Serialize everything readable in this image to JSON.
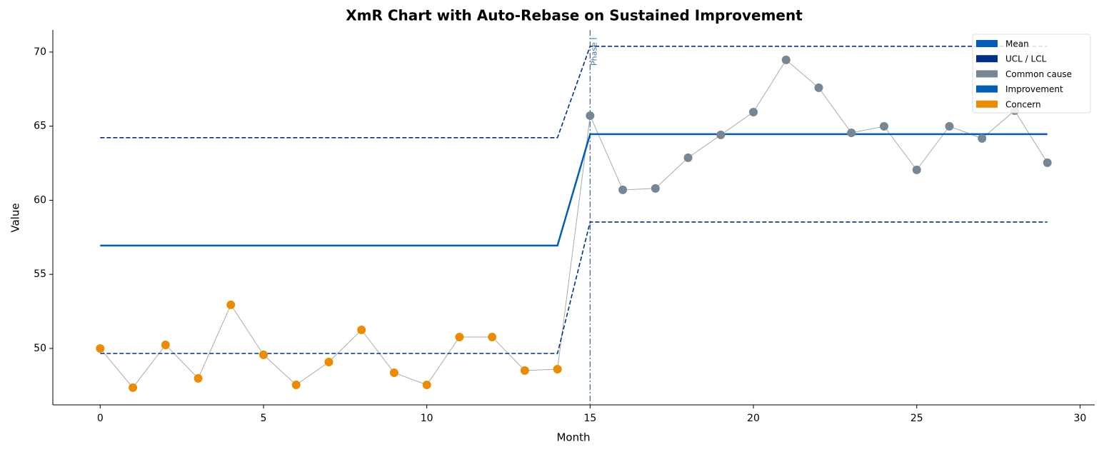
{
  "chart_data": {
    "type": "xmr",
    "title": "XmR Chart with Auto-Rebase on Sustained Improvement",
    "x_label": "Month",
    "y_label": "Value",
    "x": [
      0,
      1,
      2,
      3,
      4,
      5,
      6,
      7,
      8,
      9,
      10,
      11,
      12,
      13,
      14,
      15,
      16,
      17,
      18,
      19,
      20,
      21,
      22,
      23,
      24,
      25,
      26,
      27,
      28,
      29
    ],
    "values": [
      50.0,
      47.35,
      50.24,
      47.98,
      52.94,
      49.57,
      47.54,
      49.08,
      51.25,
      48.36,
      47.54,
      50.77,
      50.77,
      48.51,
      48.6,
      65.71,
      60.7,
      60.8,
      62.87,
      64.41,
      65.95,
      69.47,
      67.59,
      64.55,
      64.99,
      62.05,
      64.99,
      64.17,
      66.05,
      62.53
    ],
    "line_color": "#aaaaaa",
    "point_class": [
      "Concern",
      "Concern",
      "Concern",
      "Concern",
      "Concern",
      "Concern",
      "Concern",
      "Concern",
      "Concern",
      "Concern",
      "Concern",
      "Concern",
      "Concern",
      "Concern",
      "Concern",
      "Common cause",
      "Common cause",
      "Common cause",
      "Common cause",
      "Common cause",
      "Common cause",
      "Common cause",
      "Common cause",
      "Common cause",
      "Common cause",
      "Common cause",
      "Common cause",
      "Common cause",
      "Common cause",
      "Common cause"
    ],
    "mean": {
      "name": "Mean",
      "color": "#005eb8",
      "values": [
        56.94,
        56.94,
        56.94,
        56.94,
        56.94,
        56.94,
        56.94,
        56.94,
        56.94,
        56.94,
        56.94,
        56.94,
        56.94,
        56.94,
        56.94,
        64.46,
        64.46,
        64.46,
        64.46,
        64.46,
        64.46,
        64.46,
        64.46,
        64.46,
        64.46,
        64.46,
        64.46,
        64.46,
        64.46,
        64.46
      ]
    },
    "limits": {
      "name": "UCL / LCL",
      "color": "#003087",
      "ucl": [
        64.22,
        64.22,
        64.22,
        64.22,
        64.22,
        64.22,
        64.22,
        64.22,
        64.22,
        64.22,
        64.22,
        64.22,
        64.22,
        64.22,
        64.22,
        70.39,
        70.39,
        70.39,
        70.39,
        70.39,
        70.39,
        70.39,
        70.39,
        70.39,
        70.39,
        70.39,
        70.39,
        70.39,
        70.39,
        70.39
      ],
      "lcl": [
        49.66,
        49.66,
        49.66,
        49.66,
        49.66,
        49.66,
        49.66,
        49.66,
        49.66,
        49.66,
        49.66,
        49.66,
        49.66,
        49.66,
        49.66,
        58.53,
        58.53,
        58.53,
        58.53,
        58.53,
        58.53,
        58.53,
        58.53,
        58.53,
        58.53,
        58.53,
        58.53,
        58.53,
        58.53,
        58.53
      ]
    },
    "classes": [
      {
        "name": "Common cause",
        "color": "#768692"
      },
      {
        "name": "Improvement",
        "color": "#005eb8"
      },
      {
        "name": "Concern",
        "color": "#ed8b00"
      }
    ],
    "phase_lines": [
      {
        "x": 15,
        "label": "Phase I",
        "color": "#41719c"
      }
    ],
    "legend": "upper right",
    "xlim": [
      -1.45,
      30.45
    ],
    "ylim": [
      46.19,
      71.49
    ],
    "xticks": [
      0,
      5,
      10,
      15,
      20,
      25,
      30
    ],
    "yticks": [
      50,
      55,
      60,
      65,
      70
    ]
  }
}
